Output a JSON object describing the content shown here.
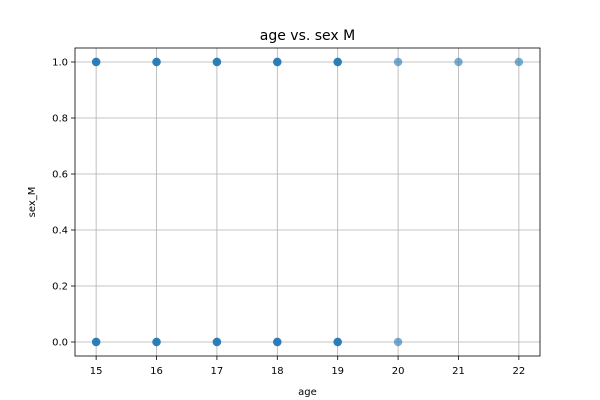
{
  "chart_data": {
    "type": "scatter",
    "title": "age vs. sex M",
    "xlabel": "age",
    "ylabel": "sex_M",
    "xlim": [
      14.65,
      22.35
    ],
    "ylim": [
      -0.05,
      1.05
    ],
    "xticks": [
      15,
      16,
      17,
      18,
      19,
      20,
      21,
      22
    ],
    "yticks": [
      0.0,
      0.2,
      0.4,
      0.6,
      0.8,
      1.0
    ],
    "ytick_labels": [
      "0.0",
      "0.2",
      "0.4",
      "0.6",
      "0.8",
      "1.0"
    ],
    "grid": true,
    "point_color": "#1f77b4",
    "point_alpha": 0.6,
    "series": [
      {
        "x": [
          15,
          15,
          15,
          16,
          16,
          16,
          17,
          17,
          17,
          18,
          18,
          18,
          19,
          19,
          19,
          20,
          21,
          22,
          15,
          15,
          15,
          16,
          16,
          16,
          17,
          17,
          17,
          18,
          18,
          18,
          19,
          19,
          19,
          20
        ],
        "y": [
          1,
          1,
          1,
          1,
          1,
          1,
          1,
          1,
          1,
          1,
          1,
          1,
          1,
          1,
          1,
          1,
          1,
          1,
          0,
          0,
          0,
          0,
          0,
          0,
          0,
          0,
          0,
          0,
          0,
          0,
          0,
          0,
          0,
          0
        ]
      }
    ]
  }
}
